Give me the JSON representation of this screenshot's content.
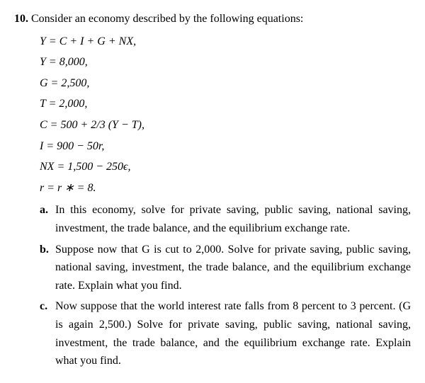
{
  "problem": {
    "number": "10.",
    "intro": "Consider an economy described by the following equations:"
  },
  "equations": {
    "e1": "Y  =  C  +  I  +  G  +  NX,",
    "e2": "Y  =  8,000,",
    "e3": "G  =  2,500,",
    "e4": "T  =  2,000,",
    "e5": "C  =  500  +  2/3 (Y  −  T),",
    "e6": "I  =  900  −  50r,",
    "e7": "NX  =  1,500  −  250ϵ,",
    "e8": "r  =  r ∗ =  8."
  },
  "subparts": {
    "a": {
      "label": "a.",
      "text": "In this economy, solve for private saving, public saving, national saving, investment, the trade balance, and the equilibrium exchange rate."
    },
    "b": {
      "label": "b.",
      "text": "Suppose now that G is cut to 2,000. Solve for private saving, public saving, national saving, investment, the trade balance, and the equilibrium exchange rate. Explain what you find."
    },
    "c": {
      "label": "c.",
      "text": "Now suppose that the world interest rate falls from 8 percent to 3 percent. (G is again 2,500.) Solve for private saving, public saving, national saving, investment, the trade balance, and the equilibrium exchange rate. Explain what you find."
    }
  }
}
